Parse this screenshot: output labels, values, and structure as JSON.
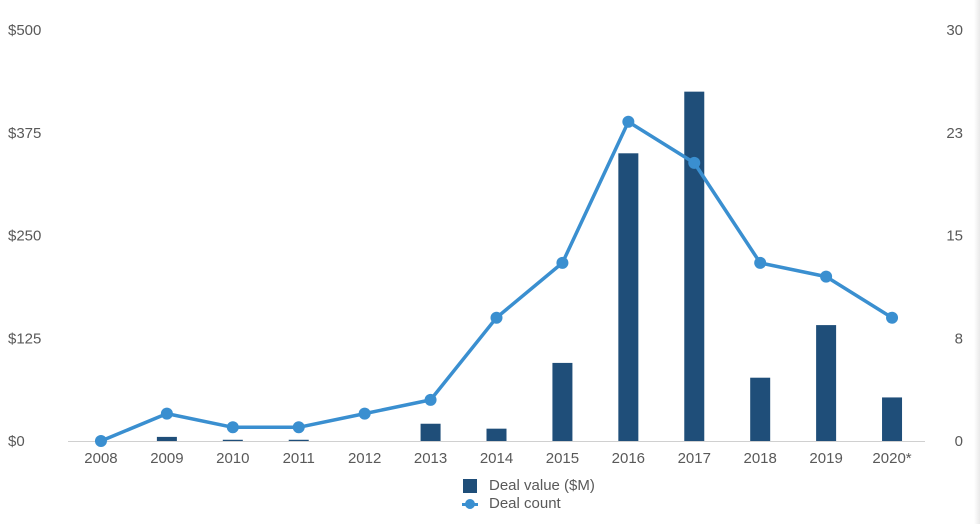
{
  "chart_data": {
    "type": "bar",
    "categories": [
      "2008",
      "2009",
      "2010",
      "2011",
      "2012",
      "2013",
      "2014",
      "2015",
      "2016",
      "2017",
      "2018",
      "2019",
      "2020*"
    ],
    "series": [
      {
        "name": "Deal value ($M)",
        "type": "bar",
        "axis": "left",
        "color": "#1f4e79",
        "values": [
          0,
          5,
          1.5,
          1.5,
          0,
          21,
          15,
          95,
          350,
          425,
          77,
          141,
          53
        ]
      },
      {
        "name": "Deal count",
        "type": "line",
        "axis": "right",
        "color": "#3a8fd0",
        "values": [
          0,
          2,
          1,
          1,
          2,
          3,
          9,
          13,
          23.3,
          20.3,
          13,
          12,
          9
        ]
      }
    ],
    "y_left": {
      "ylim": [
        0,
        500
      ],
      "tick_labels": [
        "$0",
        "$125",
        "$250",
        "$375",
        "$500"
      ]
    },
    "y_right": {
      "ylim": [
        0,
        30
      ],
      "tick_labels": [
        "0",
        "8",
        "15",
        "23",
        "30"
      ]
    },
    "grid": false,
    "legend_position": "bottom"
  }
}
